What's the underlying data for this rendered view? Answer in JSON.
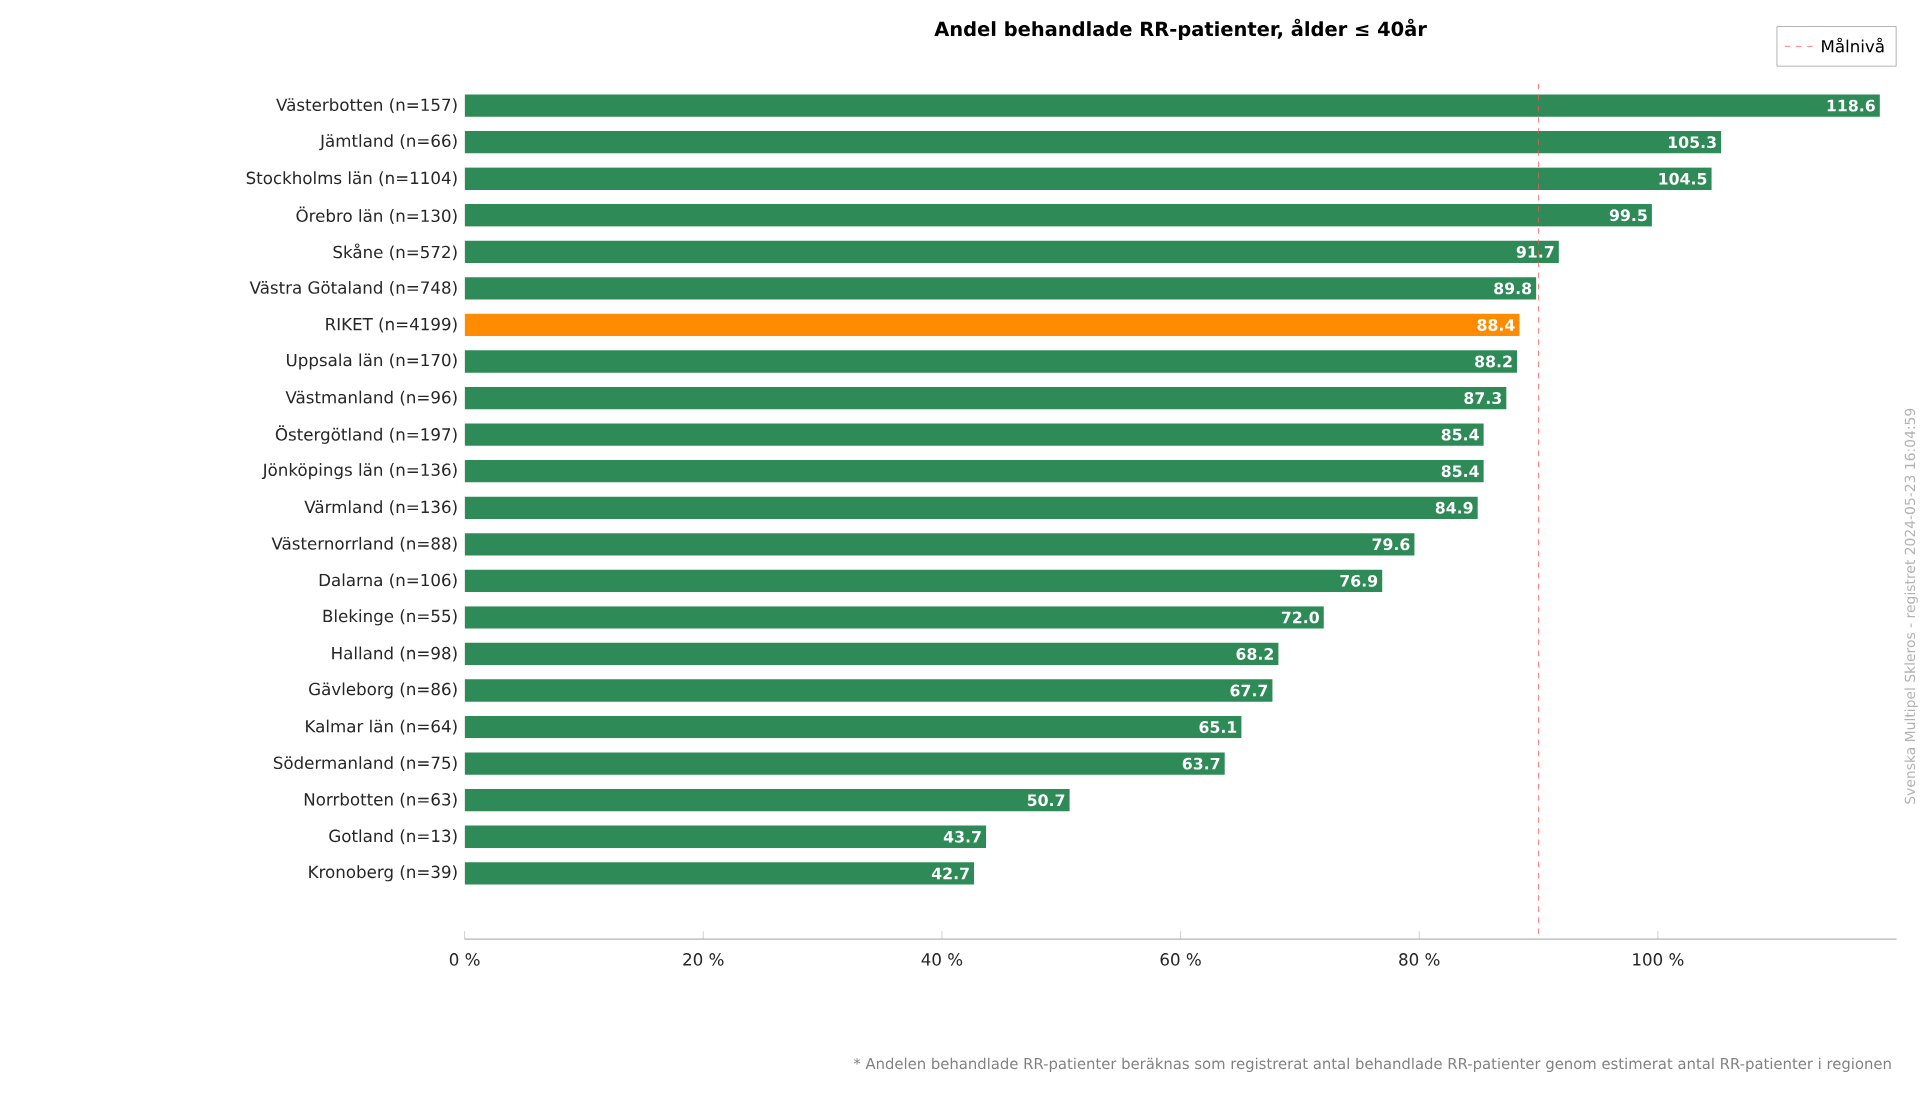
{
  "chart_data": {
    "type": "bar",
    "orientation": "horizontal",
    "title": "Andel behandlade RR-patienter, ålder ≤ 40år",
    "categories": [
      "Västerbotten (n=157)",
      "Jämtland (n=66)",
      "Stockholms län (n=1104)",
      "Örebro län (n=130)",
      "Skåne (n=572)",
      "Västra Götaland (n=748)",
      "RIKET (n=4199)",
      "Uppsala län (n=170)",
      "Västmanland (n=96)",
      "Östergötland (n=197)",
      "Jönköpings län (n=136)",
      "Värmland (n=136)",
      "Västernorrland (n=88)",
      "Dalarna (n=106)",
      "Blekinge (n=55)",
      "Halland (n=98)",
      "Gävleborg (n=86)",
      "Kalmar län (n=64)",
      "Södermanland (n=75)",
      "Norrbotten (n=63)",
      "Gotland (n=13)",
      "Kronoberg (n=39)"
    ],
    "values": [
      118.6,
      105.3,
      104.5,
      99.5,
      91.7,
      89.8,
      88.4,
      88.2,
      87.3,
      85.4,
      85.4,
      84.9,
      79.6,
      76.9,
      72.0,
      68.2,
      67.7,
      65.1,
      63.7,
      50.7,
      43.7,
      42.7
    ],
    "colors": [
      "#2e8b57",
      "#2e8b57",
      "#2e8b57",
      "#2e8b57",
      "#2e8b57",
      "#2e8b57",
      "#ff8c00",
      "#2e8b57",
      "#2e8b57",
      "#2e8b57",
      "#2e8b57",
      "#2e8b57",
      "#2e8b57",
      "#2e8b57",
      "#2e8b57",
      "#2e8b57",
      "#2e8b57",
      "#2e8b57",
      "#2e8b57",
      "#2e8b57",
      "#2e8b57",
      "#2e8b57"
    ],
    "value_labels": [
      "118.6",
      "105.3",
      "104.5",
      "99.5",
      "91.7",
      "89.8",
      "88.4",
      "88.2",
      "87.3",
      "85.4",
      "85.4",
      "84.9",
      "79.6",
      "76.9",
      "72.0",
      "68.2",
      "67.7",
      "65.1",
      "63.7",
      "50.7",
      "43.7",
      "42.7"
    ],
    "xlim": [
      0,
      120
    ],
    "xticks": [
      {
        "value": 0,
        "label": "0 %"
      },
      {
        "value": 20,
        "label": "20 %"
      },
      {
        "value": 40,
        "label": "40 %"
      },
      {
        "value": 60,
        "label": "60 %"
      },
      {
        "value": 80,
        "label": "80 %"
      },
      {
        "value": 100,
        "label": "100 %"
      }
    ],
    "ref_lines": [
      {
        "axis": "x",
        "value": 90,
        "label": "Målnivå",
        "color": "#ff5555",
        "line_style": "dashed"
      }
    ],
    "legend": "top right",
    "annotations": [
      "* Andelen behandlade RR-patienter beräknas som registrerat antal behandlade RR-patienter genom estimerat antal RR-patienter i regionen",
      "Svenska Multipel Skleros - registret 2024-05-23 16:04:59"
    ]
  }
}
